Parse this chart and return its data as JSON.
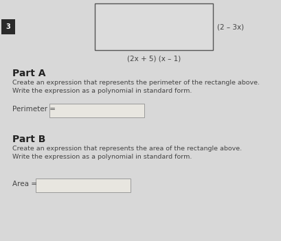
{
  "bg_color": "#e8e8e8",
  "page_bg": "#d8d8d8",
  "white": "#ffffff",
  "dark_text": "#444444",
  "label_bg": "#2a2a2a",
  "label_text": "#ffffff",
  "label_number": "3",
  "rect_fill": "#dcdcdc",
  "rect_edge": "#555555",
  "rect_label_right": "(2 – 3x)",
  "rect_label_bottom": "(2x + 5) (x – 1)",
  "part_a_title": "Part A",
  "part_a_line1": "Create an expression that represents the perimeter of the rectangle above.",
  "part_a_line2": "Write the expression as a polynomial in standard form.",
  "part_a_label": "Perimeter =",
  "part_b_title": "Part B",
  "part_b_line1": "Create an expression that represents the area of the rectangle above.",
  "part_b_line2": "Write the expression as a polynomial in standard form.",
  "part_b_label": "Area =",
  "input_box_color": "#e8e6e0",
  "input_box_edge": "#999999"
}
